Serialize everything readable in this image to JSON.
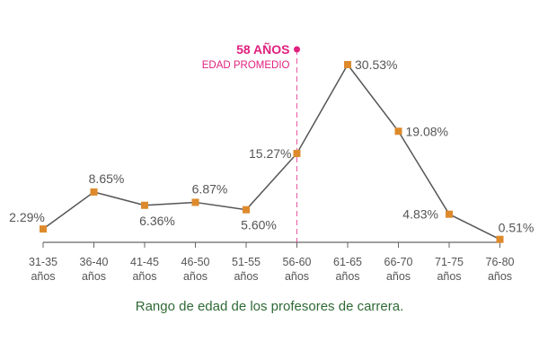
{
  "chart_data": {
    "type": "line",
    "categories": [
      "31-35 años",
      "36-40 años",
      "41-45 años",
      "46-50 años",
      "51-55 años",
      "56-60 años",
      "61-65 años",
      "66-70 años",
      "71-75 años",
      "76-80 años"
    ],
    "category_lines": [
      [
        "31-35",
        "años"
      ],
      [
        "36-40",
        "años"
      ],
      [
        "41-45",
        "años"
      ],
      [
        "46-50",
        "años"
      ],
      [
        "51-55",
        "años"
      ],
      [
        "56-60",
        "años"
      ],
      [
        "61-65",
        "años"
      ],
      [
        "66-70",
        "años"
      ],
      [
        "71-75",
        "años"
      ],
      [
        "76-80",
        "años"
      ]
    ],
    "values": [
      2.29,
      8.65,
      6.36,
      6.87,
      5.6,
      15.27,
      30.53,
      19.08,
      4.83,
      0.51
    ],
    "data_labels": [
      "2.29%",
      "8.65%",
      "6.36%",
      "6.87%",
      "5.60%",
      "15.27%",
      "30.53%",
      "19.08%",
      "4.83%",
      "0.51%"
    ],
    "ylim": [
      0,
      31
    ],
    "grid": false,
    "annotation": {
      "value": "58 AÑOS",
      "label": "EDAD PROMEDIO",
      "x": 58,
      "color": "#e0207f"
    },
    "caption": "Rango de edad de los profesores de carrera.",
    "colors": {
      "line": "#555555",
      "marker": "#dd8a2c",
      "text": "#555555",
      "caption": "#2f6a35"
    }
  }
}
